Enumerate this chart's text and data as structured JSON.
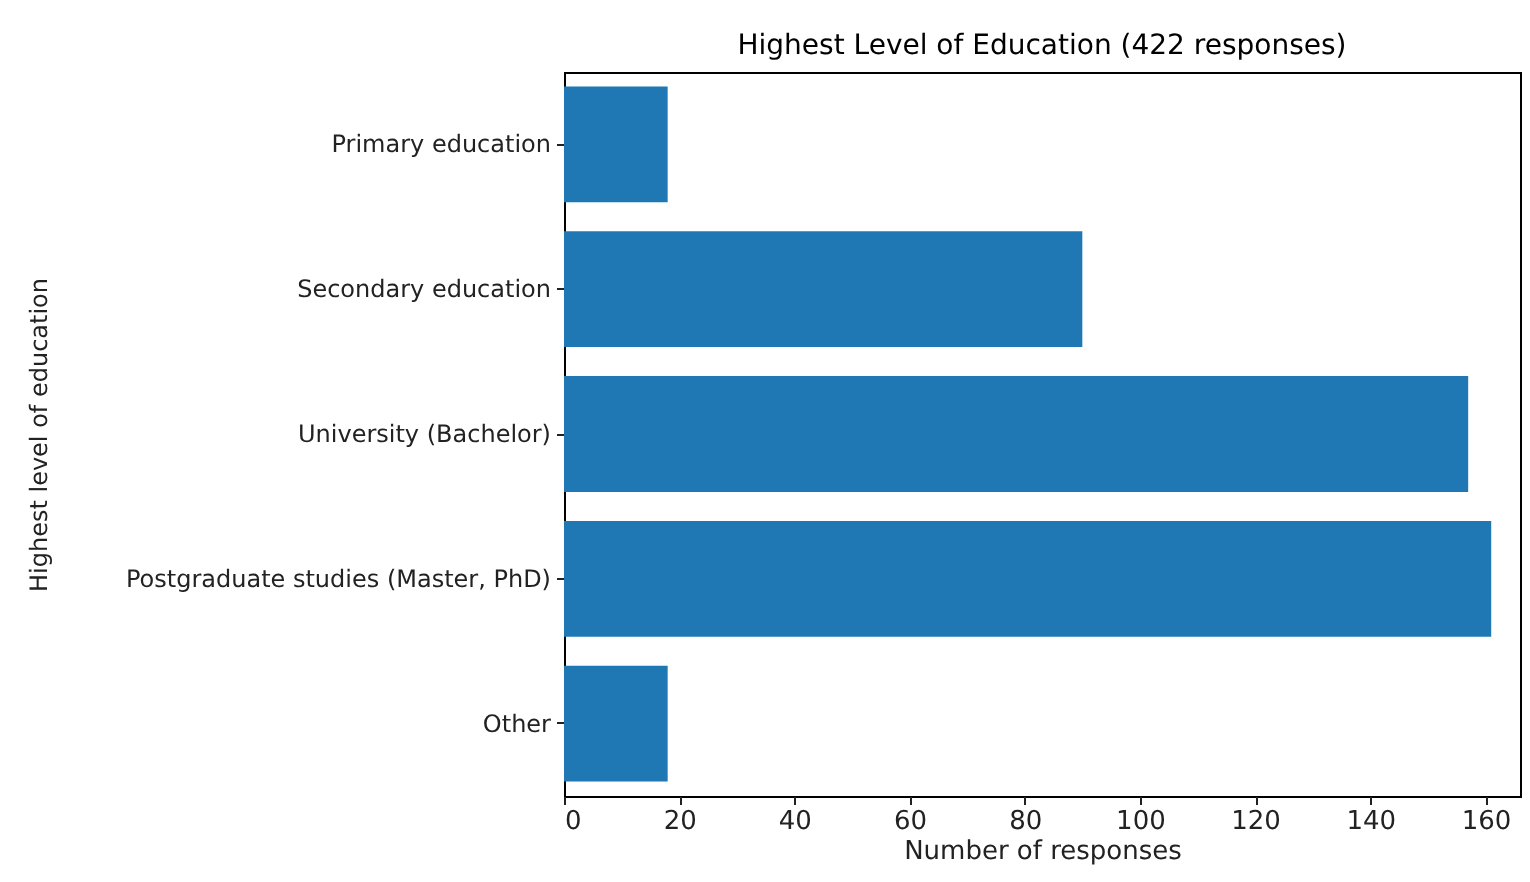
{
  "chart_data": {
    "type": "bar",
    "orientation": "horizontal",
    "title": "Highest Level of Education (422 responses)",
    "xlabel": "Number of responses",
    "ylabel": "Highest level of education",
    "categories": [
      "Primary education",
      "Secondary education",
      "University (Bachelor)",
      "Postgraduate studies (Master, PhD)",
      "Other"
    ],
    "values": [
      18,
      90,
      157,
      161,
      18
    ],
    "color": "#1f77b4",
    "xlim": [
      0,
      166
    ],
    "xticks": [
      0,
      20,
      40,
      60,
      80,
      100,
      120,
      140,
      160
    ],
    "grid": false
  }
}
